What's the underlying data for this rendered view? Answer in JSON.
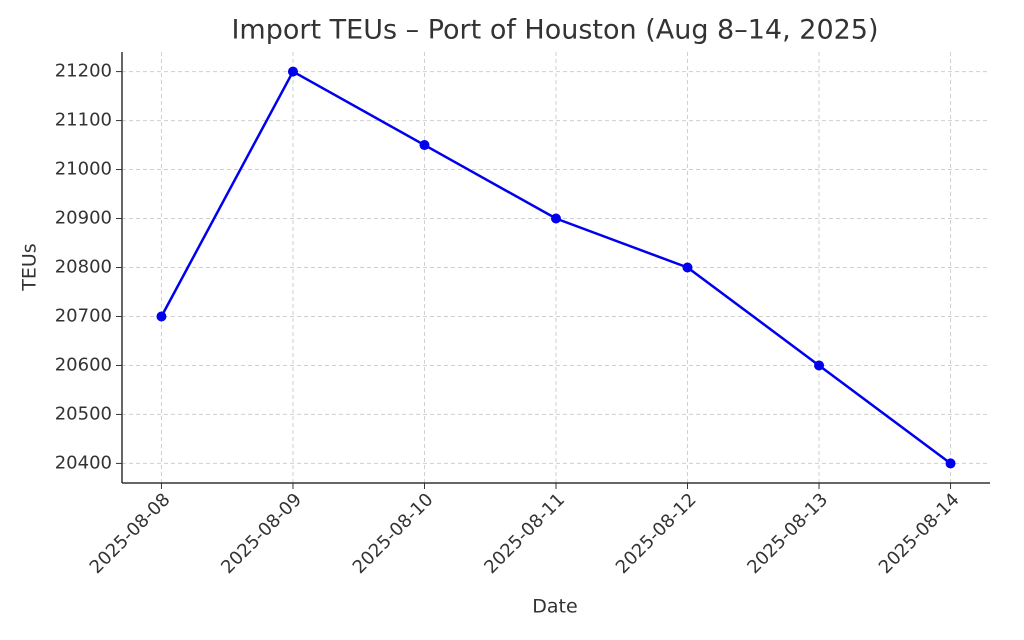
{
  "chart_data": {
    "type": "line",
    "title": "Import TEUs – Port of Houston (Aug 8–14, 2025)",
    "x_label": "Date",
    "y_label": "TEUs",
    "categories": [
      "2025-08-08",
      "2025-08-09",
      "2025-08-10",
      "2025-08-11",
      "2025-08-12",
      "2025-08-13",
      "2025-08-14"
    ],
    "series": [
      {
        "name": "Import TEUs",
        "color": "#0000ee",
        "values": [
          20700,
          21200,
          21050,
          20900,
          20800,
          20600,
          20400
        ]
      }
    ],
    "ylim": [
      20360,
      21240
    ],
    "yticks": [
      20400,
      20500,
      20600,
      20700,
      20800,
      20900,
      21000,
      21100,
      21200
    ],
    "grid": true
  }
}
